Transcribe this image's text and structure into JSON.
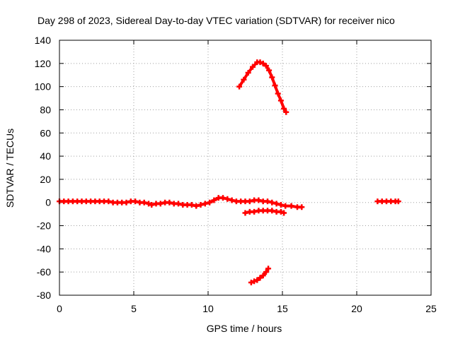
{
  "chart_data": {
    "type": "scatter",
    "title": "Day 298 of 2023, Sidereal Day-to-day VTEC variation (SDTVAR) for receiver nico",
    "xlabel": "GPS time / hours",
    "ylabel": "SDTVAR / TECUs",
    "xlim": [
      0,
      25
    ],
    "ylim": [
      -80,
      140
    ],
    "xticks": [
      0,
      5,
      10,
      15,
      20,
      25
    ],
    "yticks": [
      -80,
      -60,
      -40,
      -20,
      0,
      20,
      40,
      60,
      80,
      100,
      120,
      140
    ],
    "grid": true,
    "legend": "none",
    "series": [
      {
        "color": "#ff0000",
        "points": [
          [
            0.0,
            1
          ],
          [
            0.3,
            1
          ],
          [
            0.6,
            1
          ],
          [
            0.9,
            1
          ],
          [
            1.2,
            1
          ],
          [
            1.5,
            1
          ],
          [
            1.8,
            1
          ],
          [
            2.1,
            1
          ],
          [
            2.4,
            1
          ],
          [
            2.7,
            1
          ],
          [
            3.0,
            1
          ],
          [
            3.3,
            1
          ],
          [
            3.6,
            0
          ],
          [
            3.9,
            0
          ],
          [
            4.2,
            0
          ],
          [
            4.5,
            0
          ],
          [
            4.8,
            1
          ],
          [
            5.1,
            1
          ],
          [
            5.4,
            0
          ],
          [
            5.7,
            0
          ],
          [
            6.0,
            -1
          ],
          [
            6.2,
            -2
          ],
          [
            6.5,
            -1
          ],
          [
            6.8,
            -1
          ],
          [
            7.1,
            0
          ],
          [
            7.4,
            0
          ],
          [
            7.7,
            -1
          ],
          [
            8.0,
            -1
          ],
          [
            8.3,
            -2
          ],
          [
            8.6,
            -2
          ],
          [
            8.9,
            -2
          ],
          [
            9.2,
            -3
          ],
          [
            9.5,
            -2
          ],
          [
            9.8,
            -1
          ],
          [
            10.1,
            0
          ],
          [
            10.4,
            2
          ],
          [
            10.7,
            4
          ],
          [
            11.0,
            4
          ],
          [
            11.3,
            3
          ],
          [
            11.6,
            2
          ],
          [
            11.9,
            1
          ],
          [
            12.2,
            1
          ],
          [
            12.5,
            1
          ],
          [
            12.8,
            1
          ],
          [
            13.1,
            2
          ],
          [
            13.4,
            2
          ],
          [
            13.7,
            1
          ],
          [
            14.0,
            1
          ],
          [
            14.3,
            0
          ],
          [
            14.6,
            -1
          ],
          [
            14.9,
            -2
          ],
          [
            15.2,
            -3
          ],
          [
            15.6,
            -3
          ],
          [
            16.0,
            -4
          ],
          [
            16.3,
            -4
          ],
          [
            21.4,
            1
          ],
          [
            21.7,
            1
          ],
          [
            22.0,
            1
          ],
          [
            22.3,
            1
          ],
          [
            22.6,
            1
          ],
          [
            22.8,
            1
          ]
        ]
      },
      {
        "color": "#ff0000",
        "points": [
          [
            12.5,
            -9
          ],
          [
            12.8,
            -8
          ],
          [
            13.1,
            -8
          ],
          [
            13.4,
            -7
          ],
          [
            13.7,
            -7
          ],
          [
            14.0,
            -7
          ],
          [
            14.3,
            -7
          ],
          [
            14.6,
            -8
          ],
          [
            14.9,
            -8
          ],
          [
            15.1,
            -9
          ]
        ]
      },
      {
        "color": "#ff0000",
        "points": [
          [
            12.1,
            100
          ],
          [
            12.4,
            106
          ],
          [
            12.7,
            112
          ],
          [
            13.0,
            117
          ],
          [
            13.3,
            121
          ],
          [
            13.5,
            121
          ],
          [
            13.7,
            120
          ],
          [
            13.9,
            118
          ],
          [
            14.1,
            114
          ],
          [
            14.3,
            108
          ],
          [
            14.5,
            101
          ],
          [
            14.7,
            94
          ],
          [
            14.9,
            88
          ],
          [
            15.1,
            81
          ],
          [
            15.25,
            78
          ]
        ]
      },
      {
        "color": "#ff0000",
        "points": [
          [
            12.9,
            -69
          ],
          [
            13.1,
            -68
          ],
          [
            13.3,
            -67
          ],
          [
            13.5,
            -65
          ],
          [
            13.7,
            -63
          ],
          [
            13.9,
            -60
          ],
          [
            14.05,
            -57
          ]
        ]
      }
    ]
  }
}
